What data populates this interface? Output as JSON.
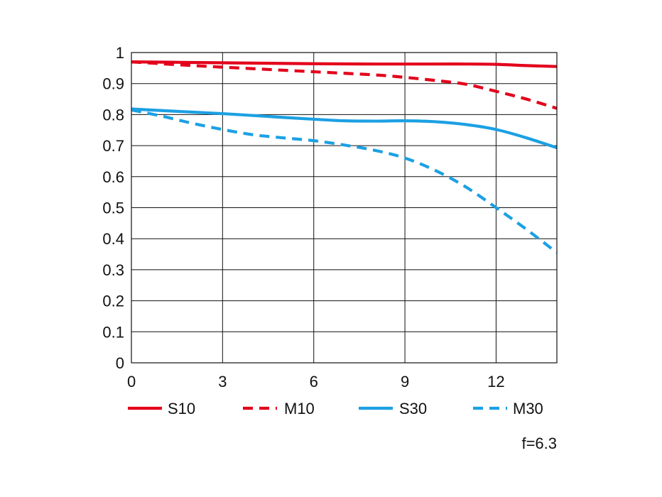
{
  "chart_data": {
    "type": "line",
    "title": "",
    "xlabel": "",
    "ylabel": "",
    "xlim": [
      0,
      14
    ],
    "ylim": [
      0,
      1
    ],
    "x_ticks": [
      "0",
      "3",
      "6",
      "9",
      "12"
    ],
    "x_tick_values": [
      0,
      3,
      6,
      9,
      12
    ],
    "y_ticks": [
      "0",
      "0.1",
      "0.2",
      "0.3",
      "0.4",
      "0.5",
      "0.6",
      "0.7",
      "0.8",
      "0.9",
      "1"
    ],
    "y_tick_values": [
      0,
      0.1,
      0.2,
      0.3,
      0.4,
      0.5,
      0.6,
      0.7,
      0.8,
      0.9,
      1
    ],
    "grid": true,
    "legend_position": "bottom",
    "annotation": "f=6.3",
    "series": [
      {
        "name": "S10",
        "color": "#e3001b",
        "style": "solid",
        "x": [
          0,
          2,
          4,
          6,
          8,
          10,
          11,
          12,
          13,
          14
        ],
        "y": [
          0.97,
          0.968,
          0.966,
          0.964,
          0.963,
          0.963,
          0.963,
          0.962,
          0.958,
          0.955
        ]
      },
      {
        "name": "M10",
        "color": "#e3001b",
        "style": "dashed",
        "x": [
          0,
          2,
          4,
          6,
          8,
          9,
          10,
          11,
          12,
          13,
          14
        ],
        "y": [
          0.97,
          0.958,
          0.948,
          0.938,
          0.928,
          0.92,
          0.91,
          0.898,
          0.875,
          0.85,
          0.82
        ]
      },
      {
        "name": "S30",
        "color": "#1ca0e3",
        "style": "solid",
        "x": [
          0,
          2,
          3,
          4,
          6,
          7,
          8,
          9,
          10,
          11,
          12,
          13,
          14
        ],
        "y": [
          0.818,
          0.808,
          0.803,
          0.797,
          0.785,
          0.78,
          0.779,
          0.78,
          0.777,
          0.768,
          0.752,
          0.725,
          0.693
        ]
      },
      {
        "name": "M30",
        "color": "#1ca0e3",
        "style": "dashed",
        "x": [
          0,
          1,
          2,
          3,
          4,
          5,
          6,
          7,
          8,
          9,
          10,
          11,
          12,
          13,
          14
        ],
        "y": [
          0.815,
          0.795,
          0.772,
          0.752,
          0.735,
          0.725,
          0.716,
          0.702,
          0.685,
          0.66,
          0.62,
          0.567,
          0.5,
          0.43,
          0.355
        ]
      }
    ]
  }
}
